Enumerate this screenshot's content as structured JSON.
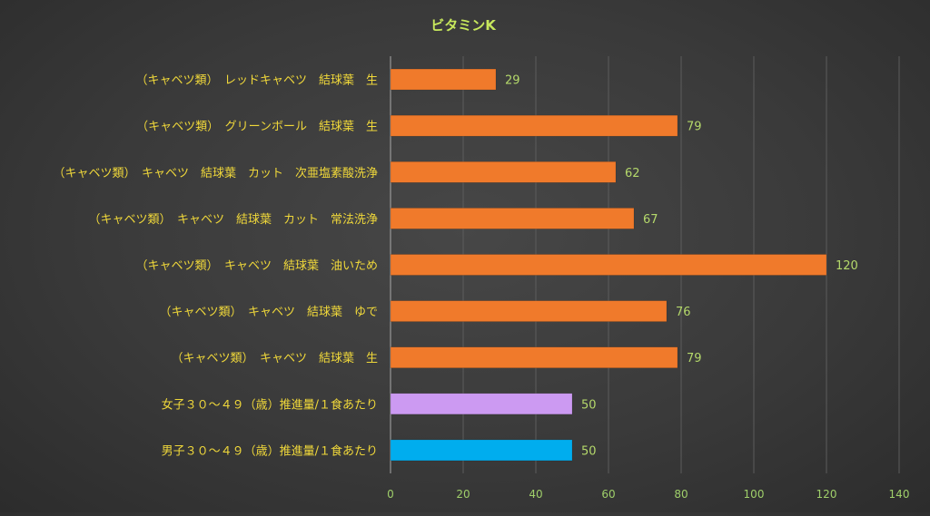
{
  "chart_data": {
    "type": "bar",
    "orientation": "horizontal",
    "title": "ビタミンK",
    "xlabel": "",
    "ylabel": "",
    "xlim": [
      0,
      140
    ],
    "x_ticks": [
      0,
      20,
      40,
      60,
      80,
      100,
      120,
      140
    ],
    "grid": true,
    "legend": "none",
    "categories": [
      "（キャベツ類）　レッドキャベツ　結球葉　生",
      "（キャベツ類）　グリーンボール　結球葉　生",
      "（キャベツ類）　キャベツ　結球葉　カット　次亜塩素酸洗浄",
      "（キャベツ類）　キャベツ　結球葉　カット　常法洗浄",
      "（キャベツ類）　キャベツ　結球葉　油いため",
      "（キャベツ類）　キャベツ　結球葉　ゆで",
      "（キャベツ類）　キャベツ　結球葉　生",
      "女子３０～４９（歳）推進量/１食あたり",
      "男子３０～４９（歳）推進量/１食あたり"
    ],
    "values": [
      29,
      79,
      62,
      67,
      120,
      76,
      79,
      50,
      50
    ],
    "bar_colors": [
      "#f07a2b",
      "#f07a2b",
      "#f07a2b",
      "#f07a2b",
      "#f07a2b",
      "#f07a2b",
      "#f07a2b",
      "#cc9af2",
      "#00adee"
    ],
    "colors": {
      "title": "#c7e85c",
      "category_label": "#f0d83a",
      "value_label": "#b5d96b",
      "tick_label": "#9fcf6a",
      "grid": "#5c5c5c"
    }
  }
}
